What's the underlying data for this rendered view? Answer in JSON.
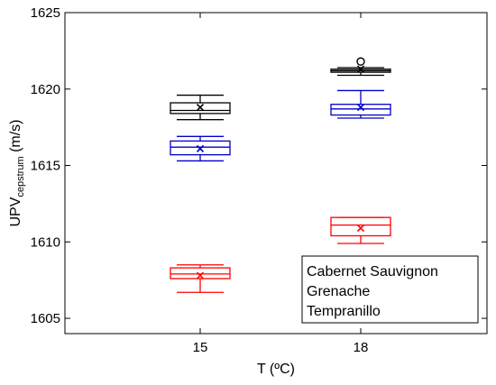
{
  "chart_data": {
    "type": "box",
    "xlabel": "T (ºC)",
    "ylabel_main": "UPV",
    "ylabel_sub": "cepstrum",
    "ylabel_unit": " (m/s)",
    "categories": [
      "15",
      "18"
    ],
    "ylim": [
      1604,
      1625
    ],
    "yticks": [
      1605,
      1610,
      1615,
      1620,
      1625
    ],
    "ytick_labels": [
      "1605",
      "1610",
      "1615",
      "1620",
      "1625"
    ],
    "legend_position": "bottom-right",
    "series": [
      {
        "name": "Cabernet Sauvignon",
        "color": "#000000",
        "boxes": [
          {
            "category": "15",
            "whisker_low": 1618.0,
            "q1": 1618.4,
            "median": 1618.6,
            "q3": 1619.1,
            "whisker_high": 1619.6,
            "mean": 1618.8,
            "outliers": []
          },
          {
            "category": "18",
            "whisker_low": 1620.9,
            "q1": 1621.1,
            "median": 1621.2,
            "q3": 1621.3,
            "whisker_high": 1621.4,
            "mean": 1621.3,
            "outliers": [
              1621.8
            ]
          }
        ]
      },
      {
        "name": "Grenache",
        "color": "#ff0000",
        "boxes": [
          {
            "category": "15",
            "whisker_low": 1606.7,
            "q1": 1607.6,
            "median": 1607.9,
            "q3": 1608.3,
            "whisker_high": 1608.5,
            "mean": 1607.8,
            "outliers": []
          },
          {
            "category": "18",
            "whisker_low": 1609.9,
            "q1": 1610.4,
            "median": 1611.1,
            "q3": 1611.6,
            "whisker_high": 1611.6,
            "mean": 1610.9,
            "outliers": []
          }
        ]
      },
      {
        "name": "Tempranillo",
        "color": "#0000cc",
        "boxes": [
          {
            "category": "15",
            "whisker_low": 1615.3,
            "q1": 1615.7,
            "median": 1616.2,
            "q3": 1616.6,
            "whisker_high": 1616.9,
            "mean": 1616.1,
            "outliers": []
          },
          {
            "category": "18",
            "whisker_low": 1618.1,
            "q1": 1618.3,
            "median": 1618.7,
            "q3": 1619.0,
            "whisker_high": 1619.9,
            "mean": 1618.8,
            "outliers": []
          }
        ]
      }
    ]
  }
}
